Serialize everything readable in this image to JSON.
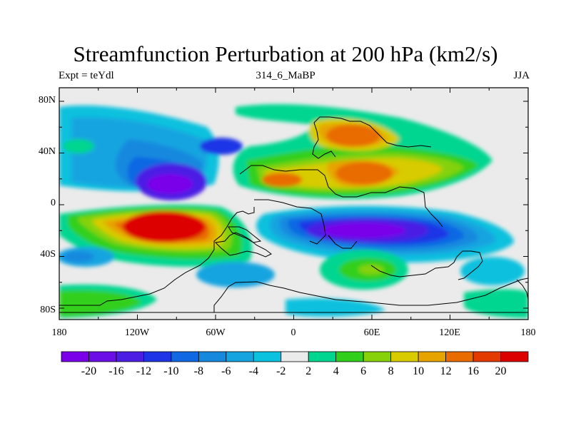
{
  "title": "Streamfunction Perturbation at 200 hPa (km2/s)",
  "subtitle_left": "Expt = teYdl",
  "subtitle_center": "314_6_MaBP",
  "subtitle_right": "JJA",
  "lat_labels": [
    "80N",
    "40N",
    "0",
    "40S",
    "80S"
  ],
  "lon_labels": [
    "180",
    "120W",
    "60W",
    "0",
    "60E",
    "120E",
    "180"
  ],
  "colorbar": {
    "labels": [
      "-20",
      "-16",
      "-12",
      "-10",
      "-8",
      "-6",
      "-4",
      "-2",
      "2",
      "4",
      "6",
      "8",
      "10",
      "12",
      "16",
      "20"
    ],
    "colors": [
      "#7a00ea",
      "#6a0de6",
      "#4c1ee4",
      "#1f34e6",
      "#1168e3",
      "#1689df",
      "#16a4e0",
      "#0ac1de",
      "#ebebeb",
      "#00d690",
      "#31cf1c",
      "#86d10a",
      "#d8cb00",
      "#e7a400",
      "#e86c00",
      "#e33a00",
      "#dc0000"
    ]
  },
  "colors": {
    "background": "#ffffff",
    "neutral": "#ebebeb",
    "coast": "#000000"
  }
}
